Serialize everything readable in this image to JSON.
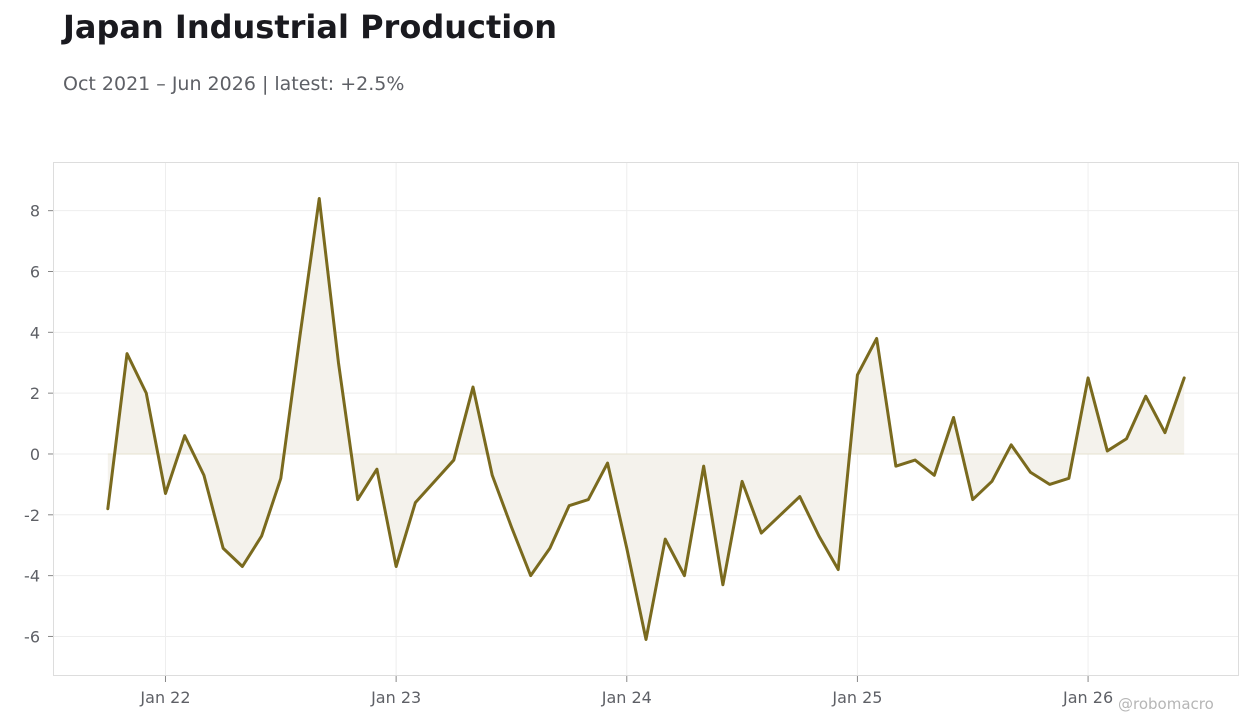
{
  "header": {
    "title": "Japan Industrial Production",
    "subtitle": "Oct 2021 – Jun 2026 | latest: +2.5%"
  },
  "watermark": "@robomacro",
  "chart_data": {
    "type": "area",
    "title": "Japan Industrial Production",
    "subtitle": "Oct 2021 – Jun 2026 | latest: +2.5%",
    "xlabel": "",
    "ylabel": "",
    "x_start": "2021-10",
    "x_end": "2026-06",
    "x_ticks": [
      {
        "label": "Jan 22",
        "date": "2022-01"
      },
      {
        "label": "Jan 23",
        "date": "2023-01"
      },
      {
        "label": "Jan 24",
        "date": "2024-01"
      },
      {
        "label": "Jan 25",
        "date": "2025-01"
      },
      {
        "label": "Jan 26",
        "date": "2026-01"
      }
    ],
    "y_ticks": [
      8,
      6,
      4,
      2,
      0,
      -2,
      -4,
      -6
    ],
    "ylim": [
      -7.3,
      9.6
    ],
    "grid": true,
    "colors": {
      "line": "#7a6a1e",
      "fill": "#f4f2ec",
      "grid": "#eeeeee",
      "frame": "#dddddd"
    },
    "series": [
      {
        "values": [
          -1.8,
          3.3,
          2.0,
          -1.3,
          0.6,
          -0.7,
          -3.1,
          -3.7,
          -2.7,
          -0.8,
          3.9,
          8.4,
          3.0,
          -1.5,
          -0.5,
          -3.7,
          -1.6,
          -0.9,
          -0.2,
          2.2,
          -0.7,
          -2.4,
          -4.0,
          -3.1,
          -1.7,
          -1.5,
          -0.3,
          -3.1,
          -6.1,
          -2.8,
          -4.0,
          -0.4,
          -4.3,
          -0.9,
          -2.6,
          -2.0,
          -1.4,
          -2.7,
          -3.8,
          2.6,
          3.8,
          -0.4,
          -0.2,
          -0.7,
          1.2,
          -1.5,
          -0.9,
          0.3,
          -0.6,
          -1.0,
          -0.8,
          2.5,
          0.1,
          0.5,
          1.9,
          0.7,
          2.5
        ]
      }
    ]
  }
}
